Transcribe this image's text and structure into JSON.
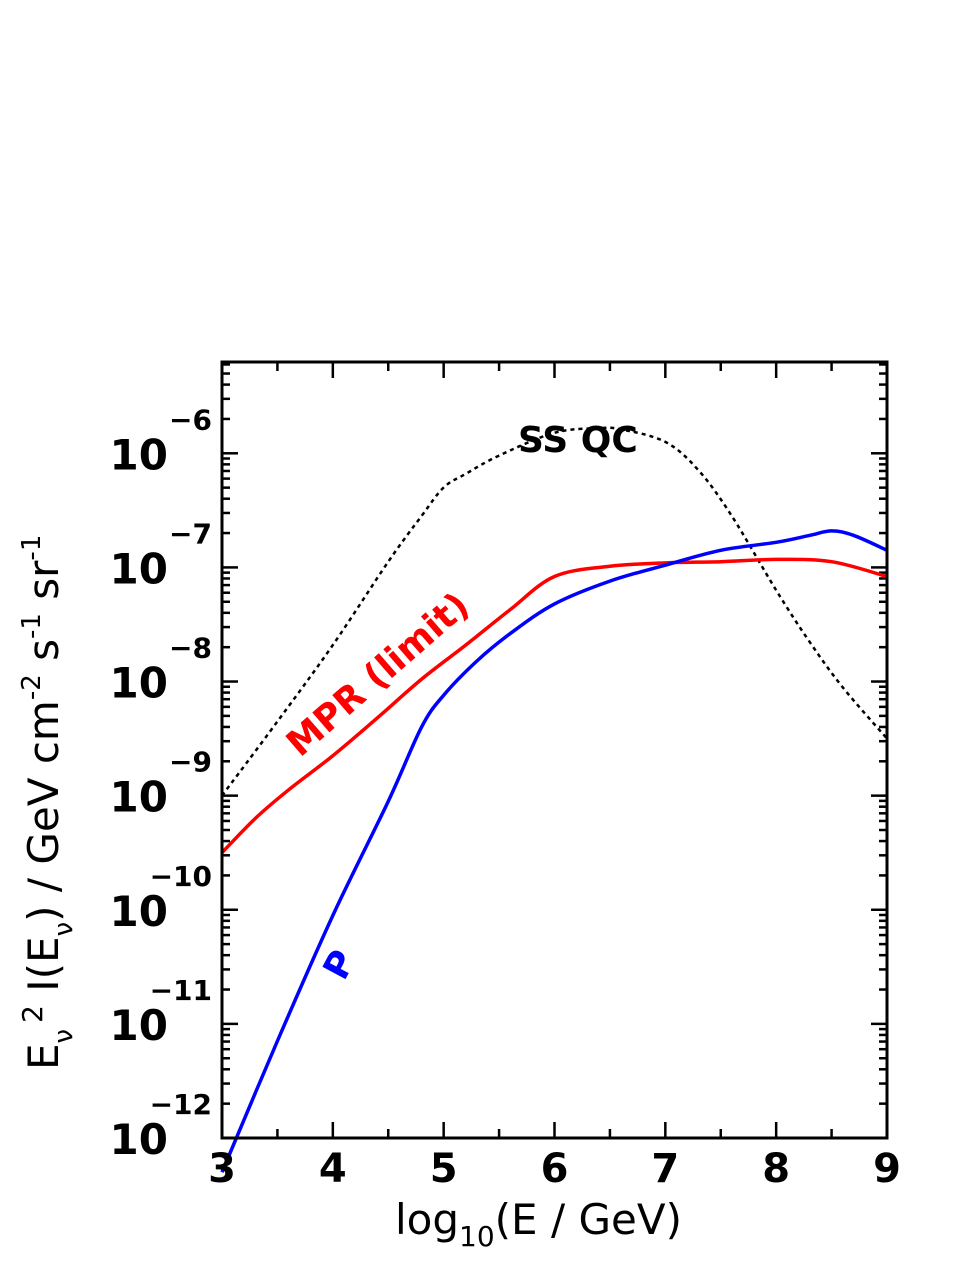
{
  "chart_data": {
    "type": "line",
    "x_axis": {
      "label_main": "log",
      "label_sub": "10",
      "label_rest": "(E / GeV)",
      "range": [
        3,
        9
      ],
      "ticks": [
        "3",
        "4",
        "5",
        "6",
        "7",
        "8",
        "9"
      ]
    },
    "y_axis": {
      "label": "Eν² I(Eν) / GeV cm⁻² s⁻¹ sr⁻¹",
      "label_parts": {
        "e": "E",
        "nu_sub": "ν",
        "two": "2",
        "i_open": " I(E",
        "i_close": ") / GeV cm",
        "m2": "-2",
        "s": " s",
        "m1a": "-1",
        "sr": " sr",
        "m1b": "-1"
      },
      "scale": "log",
      "range_log10": [
        -12,
        -5.2
      ],
      "ticks": [
        {
          "base": "10",
          "exp": "−6",
          "value": -6
        },
        {
          "base": "10",
          "exp": "−7",
          "value": -7
        },
        {
          "base": "10",
          "exp": "−8",
          "value": -8
        },
        {
          "base": "10",
          "exp": "−9",
          "value": -9
        },
        {
          "base": "10",
          "exp": "−10",
          "value": -10
        },
        {
          "base": "10",
          "exp": "−11",
          "value": -11
        },
        {
          "base": "10",
          "exp": "−12",
          "value": -12
        }
      ]
    },
    "series": [
      {
        "name": "SS QC",
        "color": "#000000",
        "style": "dotted",
        "x": [
          3.0,
          3.5,
          4.0,
          4.5,
          4.8,
          5.0,
          5.2,
          5.5,
          6.0,
          6.4,
          6.6,
          7.0,
          7.3,
          7.6,
          8.0,
          8.3,
          8.6,
          9.0
        ],
        "y": [
          -9.0,
          -8.35,
          -7.68,
          -6.95,
          -6.55,
          -6.3,
          -6.18,
          -6.02,
          -5.82,
          -5.78,
          -5.79,
          -5.9,
          -6.15,
          -6.55,
          -7.2,
          -7.65,
          -8.05,
          -8.5
        ]
      },
      {
        "name": "MPR (limit)",
        "color": "#ff0000",
        "style": "solid",
        "x": [
          3.0,
          3.3,
          3.6,
          4.0,
          4.4,
          4.8,
          5.2,
          5.6,
          6.0,
          6.5,
          7.0,
          7.5,
          8.0,
          8.5,
          9.0
        ],
        "y": [
          -9.5,
          -9.2,
          -8.95,
          -8.65,
          -8.32,
          -7.98,
          -7.68,
          -7.37,
          -7.08,
          -6.99,
          -6.96,
          -6.95,
          -6.93,
          -6.95,
          -7.08
        ]
      },
      {
        "name": "P",
        "color": "#0000ff",
        "style": "solid",
        "x": [
          3.0,
          3.5,
          4.0,
          4.5,
          4.8,
          5.0,
          5.3,
          5.6,
          6.0,
          6.5,
          7.0,
          7.5,
          8.0,
          8.3,
          8.5,
          8.7,
          9.0
        ],
        "y": [
          -12.3,
          -11.15,
          -10.05,
          -9.05,
          -8.4,
          -8.12,
          -7.82,
          -7.58,
          -7.32,
          -7.12,
          -6.98,
          -6.85,
          -6.78,
          -6.72,
          -6.68,
          -6.72,
          -6.85
        ]
      }
    ],
    "annotations": [
      {
        "text": "SS QC",
        "color": "#000000"
      },
      {
        "text": "MPR (limit)",
        "color": "#ff0000"
      },
      {
        "text": "P",
        "color": "#0000ff"
      }
    ],
    "grid": false,
    "legend": "none"
  }
}
